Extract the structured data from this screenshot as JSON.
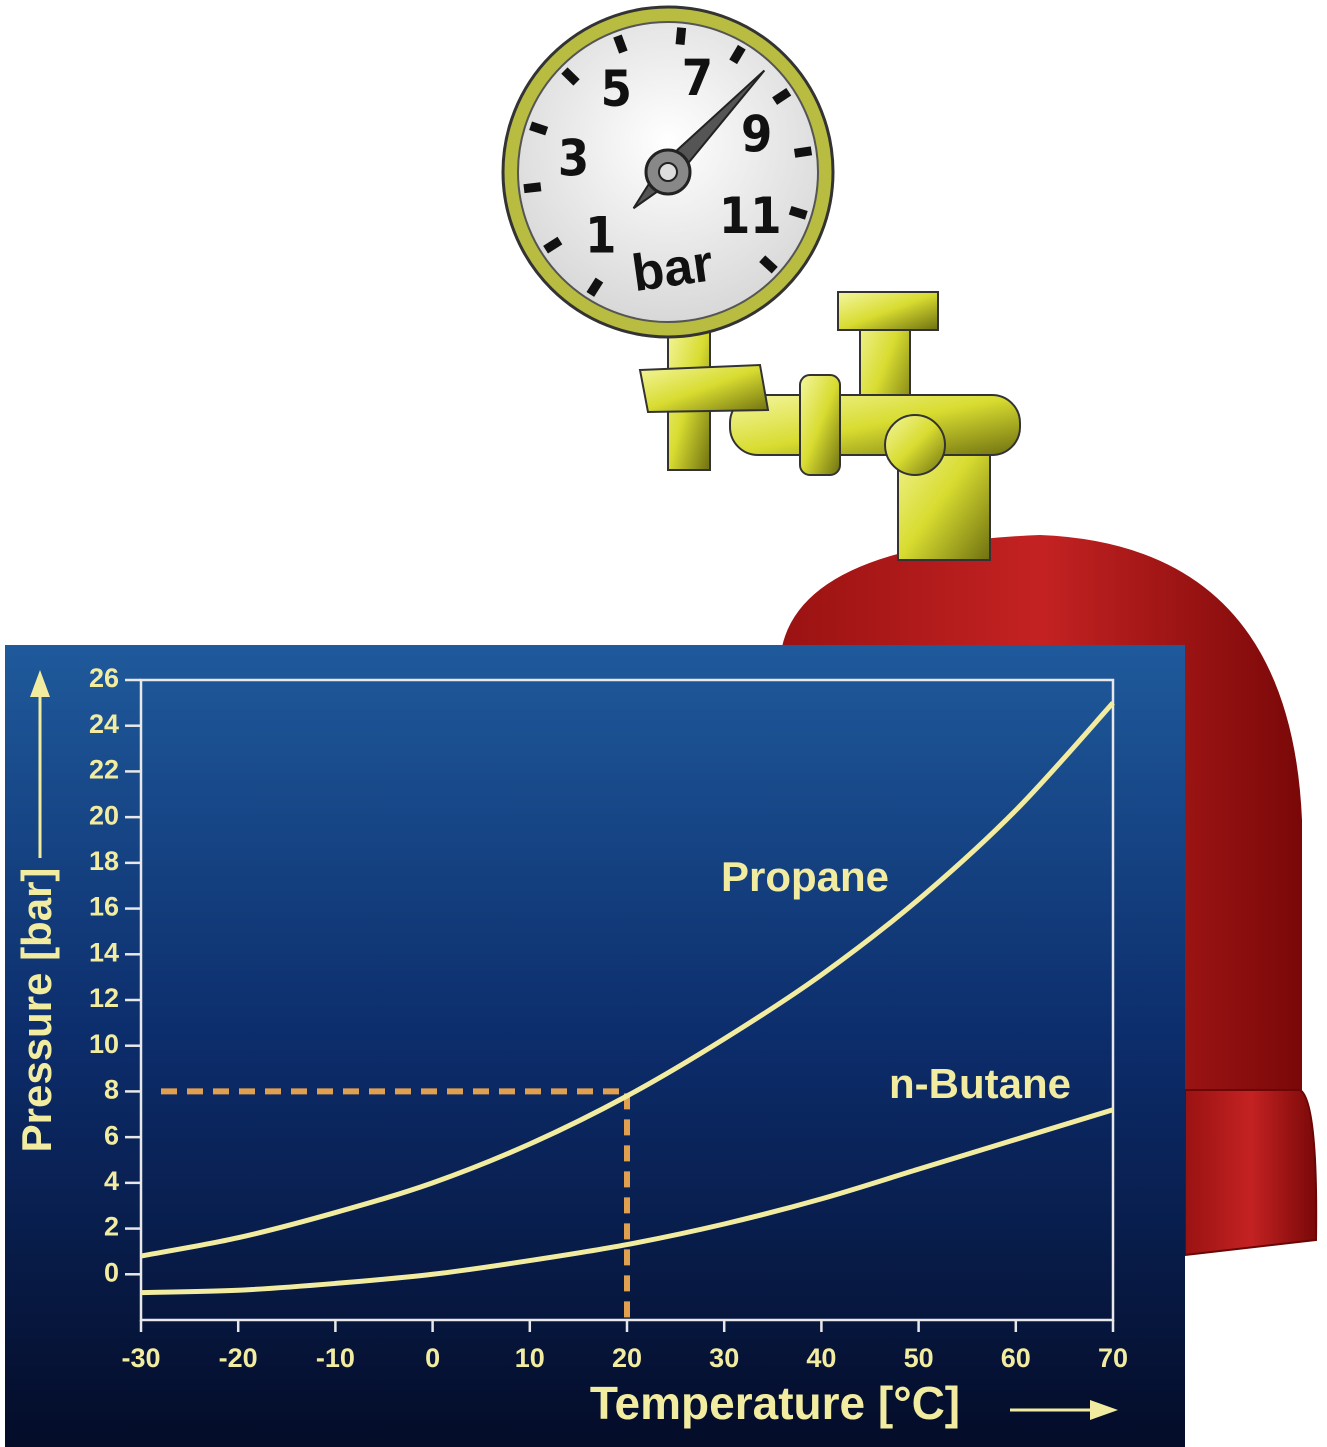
{
  "chart_data": {
    "type": "line",
    "x_label": "Temperature [°C]",
    "y_label": "Pressure [bar]",
    "x": [
      -30,
      -20,
      -10,
      0,
      10,
      20,
      30,
      40,
      50,
      60,
      70
    ],
    "series": [
      {
        "name": "Propane",
        "color": "#f2eca0",
        "values": [
          0.8,
          1.6,
          2.7,
          4.0,
          5.7,
          7.8,
          10.3,
          13.1,
          16.4,
          20.3,
          25.0
        ]
      },
      {
        "name": "n-Butane",
        "color": "#f2eca0",
        "values": [
          -0.8,
          -0.7,
          -0.4,
          0.0,
          0.6,
          1.3,
          2.2,
          3.3,
          4.6,
          5.9,
          7.2
        ]
      }
    ],
    "xlim": [
      -30,
      70
    ],
    "xticks": [
      -30,
      -20,
      -10,
      0,
      10,
      20,
      30,
      40,
      50,
      60,
      70
    ],
    "ylim": [
      -2,
      26
    ],
    "yticks": [
      0,
      2,
      4,
      6,
      8,
      10,
      12,
      14,
      16,
      18,
      20,
      22,
      24,
      26
    ],
    "marker": {
      "x": 20,
      "y": 8,
      "color": "#e0a050"
    },
    "gauge": {
      "labels": [
        1,
        3,
        5,
        7,
        9,
        11
      ],
      "unit": "bar",
      "reading": 8
    }
  }
}
